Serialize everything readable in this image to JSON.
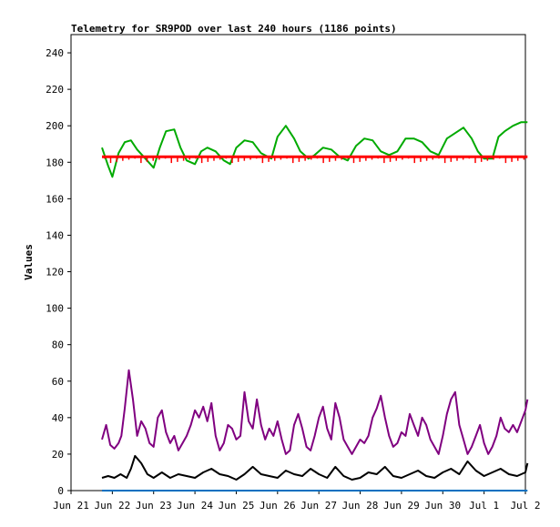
{
  "chart_data": {
    "type": "line",
    "title": "Telemetry for SR9POD over last 240 hours (1186 points)",
    "xlabel": "",
    "ylabel": "Values",
    "ylim": [
      0,
      250
    ],
    "yticks": [
      0,
      20,
      40,
      60,
      80,
      100,
      120,
      140,
      160,
      180,
      200,
      220,
      240
    ],
    "xlim": [
      "Jun 21",
      "Jul 2"
    ],
    "xticks": [
      "Jun 21",
      "Jun 22",
      "Jun 23",
      "Jun 24",
      "Jun 25",
      "Jun 26",
      "Jun 27",
      "Jun 28",
      "Jun 29",
      "Jun 30",
      "Jul 1",
      "Jul 2"
    ],
    "grid": false,
    "legend": "none",
    "series": [
      {
        "color": "#00aa00",
        "x": [
          21.75,
          21.9,
          22.0,
          22.15,
          22.3,
          22.45,
          22.6,
          22.8,
          23.0,
          23.15,
          23.3,
          23.5,
          23.65,
          23.8,
          24.0,
          24.15,
          24.3,
          24.5,
          24.7,
          24.85,
          25.0,
          25.2,
          25.4,
          25.6,
          25.85,
          26.0,
          26.2,
          26.4,
          26.55,
          26.75,
          26.9,
          27.1,
          27.3,
          27.5,
          27.7,
          27.9,
          28.1,
          28.3,
          28.5,
          28.7,
          28.9,
          29.1,
          29.3,
          29.5,
          29.7,
          29.9,
          30.1,
          30.3,
          30.5,
          30.7,
          30.85,
          31.0,
          31.2,
          31.35,
          31.5,
          31.7,
          31.9,
          32.05
        ],
        "values": [
          188,
          178,
          172,
          185,
          191,
          192,
          187,
          182,
          177,
          188,
          197,
          198,
          188,
          181,
          179,
          186,
          188,
          186,
          181,
          179,
          188,
          192,
          191,
          185,
          182,
          194,
          200,
          193,
          186,
          182,
          184,
          188,
          187,
          183,
          181,
          189,
          193,
          192,
          186,
          184,
          186,
          193,
          193,
          191,
          186,
          184,
          193,
          196,
          199,
          193,
          186,
          182,
          182,
          194,
          197,
          200,
          202,
          202
        ]
      },
      {
        "color": "#ff0000",
        "x": [
          21.75,
          32.05
        ],
        "values": [
          183,
          183
        ]
      },
      {
        "color": "#800080",
        "x": [
          21.75,
          21.85,
          21.95,
          22.05,
          22.15,
          22.22,
          22.3,
          22.4,
          22.5,
          22.6,
          22.7,
          22.8,
          22.9,
          23.0,
          23.1,
          23.2,
          23.3,
          23.4,
          23.5,
          23.6,
          23.7,
          23.8,
          23.9,
          24.0,
          24.1,
          24.2,
          24.3,
          24.4,
          24.5,
          24.6,
          24.7,
          24.8,
          24.9,
          25.0,
          25.1,
          25.2,
          25.3,
          25.4,
          25.5,
          25.6,
          25.7,
          25.8,
          25.9,
          26.0,
          26.1,
          26.2,
          26.3,
          26.4,
          26.5,
          26.6,
          26.7,
          26.8,
          26.9,
          27.0,
          27.1,
          27.2,
          27.3,
          27.4,
          27.5,
          27.6,
          27.7,
          27.8,
          27.9,
          28.0,
          28.1,
          28.2,
          28.3,
          28.4,
          28.5,
          28.6,
          28.7,
          28.8,
          28.9,
          29.0,
          29.1,
          29.2,
          29.3,
          29.4,
          29.5,
          29.6,
          29.7,
          29.8,
          29.9,
          30.0,
          30.1,
          30.2,
          30.3,
          30.4,
          30.5,
          30.6,
          30.7,
          30.8,
          30.9,
          31.0,
          31.1,
          31.2,
          31.3,
          31.4,
          31.5,
          31.6,
          31.7,
          31.8,
          31.9,
          32.0,
          32.05
        ],
        "values": [
          28,
          36,
          25,
          23,
          26,
          30,
          45,
          66,
          50,
          30,
          38,
          34,
          26,
          24,
          40,
          44,
          32,
          26,
          30,
          22,
          26,
          30,
          36,
          44,
          40,
          46,
          38,
          48,
          30,
          22,
          26,
          36,
          34,
          28,
          30,
          54,
          38,
          34,
          50,
          36,
          28,
          34,
          30,
          38,
          28,
          20,
          22,
          36,
          42,
          34,
          24,
          22,
          30,
          40,
          46,
          34,
          28,
          48,
          40,
          28,
          24,
          20,
          24,
          28,
          26,
          30,
          40,
          45,
          52,
          40,
          30,
          24,
          26,
          32,
          30,
          42,
          36,
          30,
          40,
          36,
          28,
          24,
          20,
          30,
          42,
          50,
          54,
          36,
          28,
          20,
          24,
          30,
          36,
          26,
          20,
          24,
          30,
          40,
          34,
          32,
          36,
          32,
          38,
          44,
          50
        ]
      },
      {
        "color": "#000000",
        "x": [
          21.75,
          21.9,
          22.05,
          22.2,
          22.35,
          22.45,
          22.55,
          22.7,
          22.85,
          23.0,
          23.2,
          23.4,
          23.6,
          23.8,
          24.0,
          24.2,
          24.4,
          24.6,
          24.8,
          25.0,
          25.2,
          25.4,
          25.6,
          25.8,
          26.0,
          26.2,
          26.4,
          26.6,
          26.8,
          27.0,
          27.2,
          27.4,
          27.6,
          27.8,
          28.0,
          28.2,
          28.4,
          28.6,
          28.8,
          29.0,
          29.2,
          29.4,
          29.6,
          29.8,
          30.0,
          30.2,
          30.4,
          30.6,
          30.8,
          31.0,
          31.2,
          31.4,
          31.6,
          31.8,
          32.0,
          32.05
        ],
        "values": [
          7,
          8,
          7,
          9,
          7,
          12,
          19,
          15,
          9,
          7,
          10,
          7,
          9,
          8,
          7,
          10,
          12,
          9,
          8,
          6,
          9,
          13,
          9,
          8,
          7,
          11,
          9,
          8,
          12,
          9,
          7,
          13,
          8,
          6,
          7,
          10,
          9,
          13,
          8,
          7,
          9,
          11,
          8,
          7,
          10,
          12,
          9,
          16,
          11,
          8,
          10,
          12,
          9,
          8,
          10,
          15
        ]
      },
      {
        "color": "#0070c0",
        "x": [
          21.75,
          32.05
        ],
        "values": [
          0,
          0
        ]
      }
    ]
  }
}
